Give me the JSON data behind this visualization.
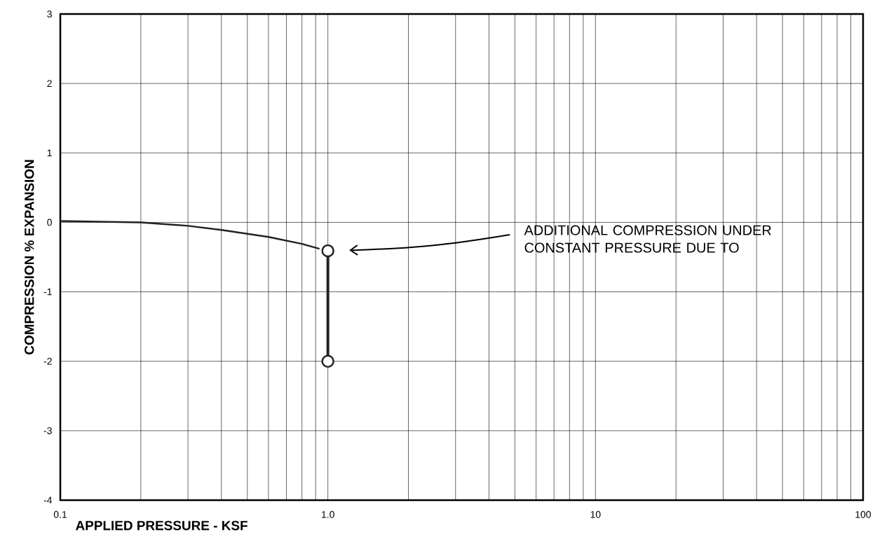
{
  "chart_data": {
    "type": "line",
    "xlabel": "APPLIED PRESSURE - KSF",
    "ylabel": "COMPRESSION % EXPANSION",
    "log": "x",
    "grid": true,
    "xlim": [
      0.1,
      100
    ],
    "ylim": [
      -4,
      3
    ],
    "xticks": [
      {
        "value": 0.1,
        "label": "0.1"
      },
      {
        "value": 0.2,
        "label": null
      },
      {
        "value": 0.3,
        "label": null
      },
      {
        "value": 0.4,
        "label": null
      },
      {
        "value": 0.5,
        "label": null
      },
      {
        "value": 0.6,
        "label": null
      },
      {
        "value": 0.7,
        "label": null
      },
      {
        "value": 0.8,
        "label": null
      },
      {
        "value": 0.9,
        "label": null
      },
      {
        "value": 1,
        "label": "1.0"
      },
      {
        "value": 2,
        "label": null
      },
      {
        "value": 3,
        "label": null
      },
      {
        "value": 4,
        "label": null
      },
      {
        "value": 5,
        "label": null
      },
      {
        "value": 6,
        "label": null
      },
      {
        "value": 7,
        "label": null
      },
      {
        "value": 8,
        "label": null
      },
      {
        "value": 9,
        "label": null
      },
      {
        "value": 10,
        "label": "10"
      },
      {
        "value": 20,
        "label": null
      },
      {
        "value": 30,
        "label": null
      },
      {
        "value": 40,
        "label": null
      },
      {
        "value": 50,
        "label": null
      },
      {
        "value": 60,
        "label": null
      },
      {
        "value": 70,
        "label": null
      },
      {
        "value": 80,
        "label": null
      },
      {
        "value": 90,
        "label": null
      },
      {
        "value": 100,
        "label": "100"
      }
    ],
    "yticks": [
      -4,
      -3,
      -2,
      -1,
      0,
      1,
      2,
      3
    ],
    "series": [
      {
        "color": "#222222",
        "marker": "none",
        "x": [
          0.1,
          0.2,
          0.3,
          0.4,
          0.6,
          0.8,
          0.93
        ],
        "values": [
          0.02,
          0.0,
          -0.05,
          -0.11,
          -0.21,
          -0.31,
          -0.38
        ]
      },
      {
        "color": "#222222",
        "marker": "circle",
        "x": [
          1.0,
          1.0
        ],
        "values": [
          -0.41,
          -2.0
        ]
      }
    ],
    "annotations": [
      "ADDITIONAL COMPRESSION UNDER CONSTANT PRESSURE DUE TO"
    ]
  }
}
